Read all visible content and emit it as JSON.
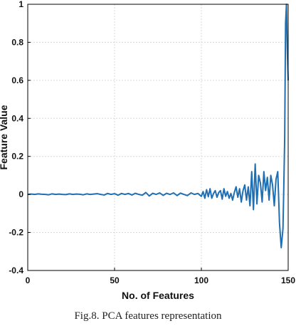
{
  "chart_data": {
    "type": "line",
    "xlabel": "No. of Features",
    "ylabel": "Feature Value",
    "xlim": [
      0,
      150
    ],
    "ylim": [
      -0.4,
      1
    ],
    "xticks": [
      0,
      50,
      100,
      150
    ],
    "yticks": [
      -0.4,
      -0.2,
      0,
      0.2,
      0.4,
      0.6,
      0.8,
      1
    ],
    "ytick_labels": [
      "-0.4",
      "-0.2",
      "0",
      "0.2",
      "0.4",
      "0.6",
      "0.8",
      "1"
    ],
    "grid": true,
    "line_color": "#1f6fb2",
    "series": [
      {
        "x": [
          0,
          2,
          4,
          6,
          8,
          10,
          12,
          14,
          16,
          18,
          20,
          22,
          24,
          26,
          28,
          30,
          32,
          34,
          36,
          38,
          40,
          42,
          44,
          46,
          48,
          50,
          52,
          54,
          56,
          58,
          60,
          62,
          64,
          66,
          68,
          70,
          72,
          74,
          76,
          78,
          80,
          82,
          84,
          86,
          88,
          90,
          92,
          94,
          96,
          98,
          100,
          101,
          102,
          103,
          104,
          105,
          106,
          107,
          108,
          109,
          110,
          111,
          112,
          113,
          114,
          115,
          116,
          117,
          118,
          119,
          120,
          121,
          122,
          123,
          124,
          125,
          126,
          127,
          128,
          129,
          130,
          131,
          132,
          133,
          134,
          135,
          136,
          137,
          138,
          139,
          140,
          141,
          142,
          143,
          144,
          145,
          146,
          147,
          147.5,
          148,
          148.5,
          149,
          149.5,
          150
        ],
        "y": [
          0,
          0.002,
          0,
          0.003,
          0.001,
          0,
          -0.002,
          0.003,
          0,
          0.002,
          0,
          -0.001,
          0.003,
          0,
          0.002,
          0.001,
          -0.002,
          0.003,
          0,
          0.002,
          0.004,
          0,
          -0.003,
          0.005,
          0,
          0.004,
          -0.004,
          0.005,
          0,
          0.005,
          -0.003,
          0.006,
          0,
          -0.004,
          0.01,
          -0.008,
          0.006,
          0,
          0.008,
          -0.005,
          0.006,
          0,
          0.008,
          -0.006,
          0.007,
          0,
          -0.006,
          0.008,
          0,
          0.005,
          -0.01,
          0.015,
          -0.02,
          0.025,
          -0.012,
          0.03,
          -0.02,
          0.005,
          0.02,
          -0.015,
          0.01,
          0.02,
          -0.025,
          0.03,
          -0.01,
          0.015,
          -0.02,
          0.005,
          -0.03,
          0.01,
          0.04,
          -0.015,
          0.03,
          -0.04,
          0.02,
          0.05,
          -0.03,
          0.04,
          -0.06,
          0.12,
          -0.08,
          0.16,
          -0.05,
          0.1,
          0.06,
          -0.04,
          0.12,
          0.02,
          0.09,
          -0.03,
          0.1,
          0.05,
          -0.06,
          0.08,
          0.12,
          -0.15,
          -0.28,
          -0.18,
          0.05,
          0.3,
          0.9,
          1,
          0.75,
          0.6
        ]
      }
    ]
  },
  "caption": "Fig.8. PCA features representation"
}
